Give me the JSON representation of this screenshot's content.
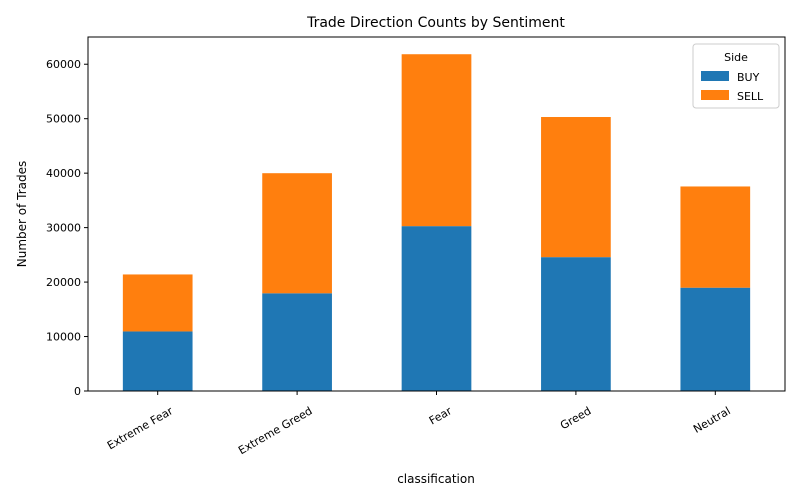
{
  "chart_data": {
    "type": "bar",
    "stacked": true,
    "title": "Trade Direction Counts by Sentiment",
    "xlabel": "classification",
    "ylabel": "Number of Trades",
    "categories": [
      "Extreme Fear",
      "Extreme Greed",
      "Fear",
      "Greed",
      "Neutral"
    ],
    "series": [
      {
        "name": "BUY",
        "color": "#1f77b4",
        "values": [
          10935,
          17940,
          30270,
          24576,
          18969
        ]
      },
      {
        "name": "SELL",
        "color": "#ff7f0e",
        "values": [
          10465,
          22052,
          31567,
          25733,
          18586
        ]
      }
    ],
    "ylim": [
      0,
      65000
    ],
    "yticks": [
      0,
      10000,
      20000,
      30000,
      40000,
      50000,
      60000
    ],
    "grid": false,
    "legend": {
      "title": "Side",
      "placement": "top-right"
    }
  }
}
